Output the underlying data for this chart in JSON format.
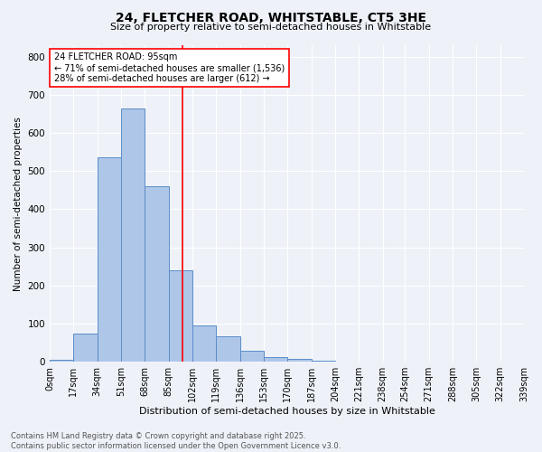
{
  "title1": "24, FLETCHER ROAD, WHITSTABLE, CT5 3HE",
  "title2": "Size of property relative to semi-detached houses in Whitstable",
  "xlabel": "Distribution of semi-detached houses by size in Whitstable",
  "ylabel": "Number of semi-detached properties",
  "bin_labels": [
    "0sqm",
    "17sqm",
    "34sqm",
    "51sqm",
    "68sqm",
    "85sqm",
    "102sqm",
    "119sqm",
    "136sqm",
    "153sqm",
    "170sqm",
    "187sqm",
    "204sqm",
    "221sqm",
    "238sqm",
    "254sqm",
    "271sqm",
    "288sqm",
    "305sqm",
    "322sqm",
    "339sqm"
  ],
  "bin_edges": [
    0,
    17,
    34,
    51,
    68,
    85,
    102,
    119,
    136,
    153,
    170,
    187,
    204,
    221,
    238,
    254,
    271,
    288,
    305,
    322,
    339
  ],
  "bar_heights": [
    5,
    75,
    535,
    665,
    460,
    240,
    95,
    68,
    30,
    12,
    7,
    2,
    0,
    0,
    0,
    0,
    0,
    0,
    0,
    0
  ],
  "bar_color": "#aec6e8",
  "bar_edge_color": "#5b8dc8",
  "vline_x": 95,
  "vline_color": "red",
  "annotation_title": "24 FLETCHER ROAD: 95sqm",
  "annotation_line1": "← 71% of semi-detached houses are smaller (1,536)",
  "annotation_line2": "28% of semi-detached houses are larger (612) →",
  "ylim": [
    0,
    830
  ],
  "yticks": [
    0,
    100,
    200,
    300,
    400,
    500,
    600,
    700,
    800
  ],
  "footer1": "Contains HM Land Registry data © Crown copyright and database right 2025.",
  "footer2": "Contains public sector information licensed under the Open Government Licence v3.0.",
  "bg_color": "#eef2f8"
}
